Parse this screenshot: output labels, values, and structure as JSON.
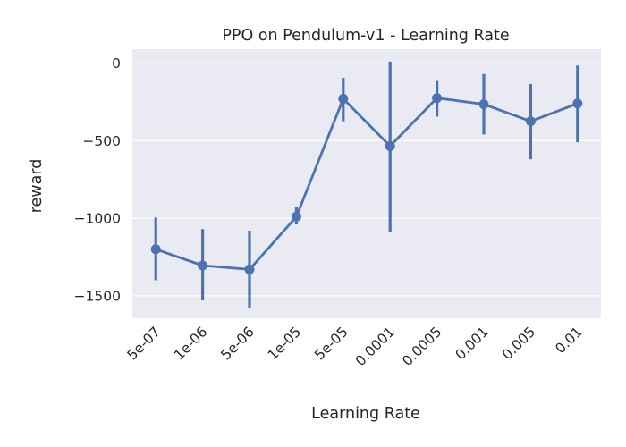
{
  "chart_data": {
    "type": "line",
    "title": "PPO on Pendulum-v1 - Learning Rate",
    "xlabel": "Learning Rate",
    "ylabel": "reward",
    "categories": [
      "5e-07",
      "1e-06",
      "5e-06",
      "1e-05",
      "5e-05",
      "0.0001",
      "0.0005",
      "0.001",
      "0.005",
      "0.01"
    ],
    "series": [
      {
        "values": [
          -1200,
          -1305,
          -1330,
          -990,
          -230,
          -535,
          -225,
          -265,
          -375,
          -260
        ],
        "ci_low": [
          -1400,
          -1530,
          -1575,
          -1040,
          -375,
          -1090,
          -345,
          -460,
          -620,
          -510
        ],
        "ci_high": [
          -995,
          -1070,
          -1080,
          -930,
          -95,
          10,
          -115,
          -70,
          -135,
          -15
        ]
      }
    ],
    "ylim": [
      -1645,
      90
    ],
    "yticks": [
      0,
      -500,
      -1000,
      -1500
    ],
    "ytick_labels": [
      "0",
      "−500",
      "−1000",
      "−1500"
    ],
    "grid": true,
    "style": {
      "background": "#eaeaf2",
      "grid_color": "#ffffff",
      "line_color": "#4c72b0"
    }
  }
}
